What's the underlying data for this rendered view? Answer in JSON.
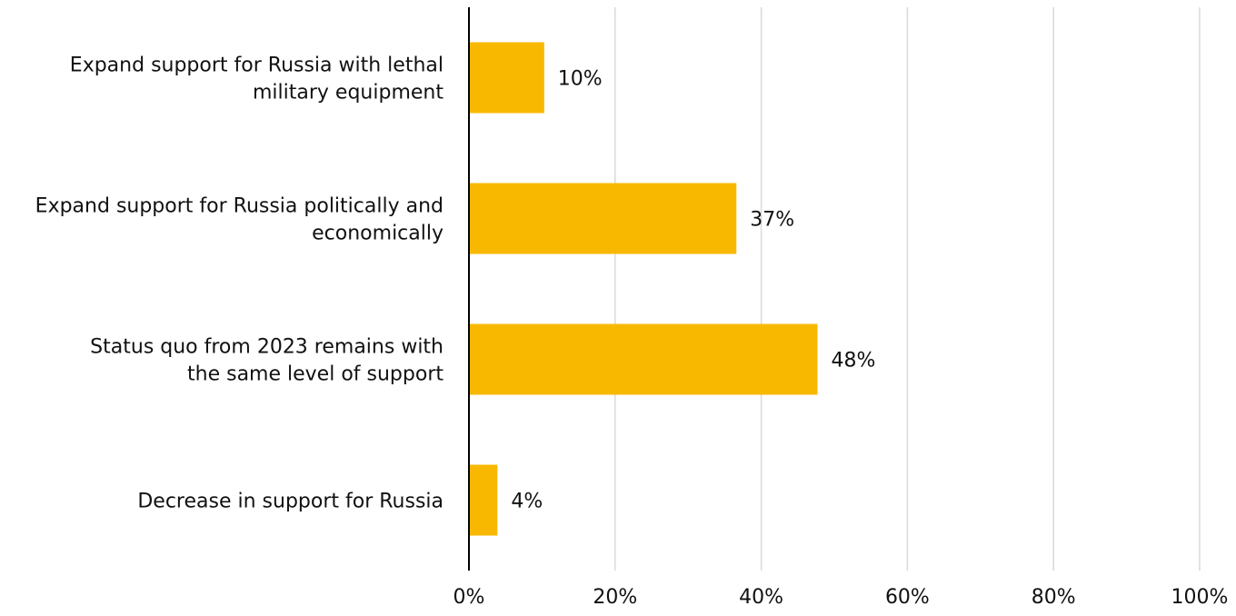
{
  "chart_data": {
    "type": "bar",
    "orientation": "horizontal",
    "categories": [
      [
        "Expand support for Russia with lethal",
        "military equipment"
      ],
      [
        "Expand support for Russia politically and",
        "economically"
      ],
      [
        "Status quo from 2023 remains with",
        "the same level of support"
      ],
      [
        "Decrease in support for Russia"
      ]
    ],
    "values": [
      10.3,
      36.6,
      47.7,
      3.9
    ],
    "data_labels": [
      "10%",
      "37%",
      "48%",
      "4%"
    ],
    "xlim": [
      0,
      100
    ],
    "x_ticks": [
      0,
      20,
      40,
      60,
      80,
      100
    ],
    "x_tick_labels": [
      "0%",
      "20%",
      "40%",
      "60%",
      "80%",
      "100%"
    ],
    "grid": "vertical",
    "legend": "none",
    "title": "",
    "xlabel": "",
    "ylabel": "",
    "colors": {
      "bar": "#F9B800",
      "grid": "#D9D9D9",
      "axis": "#000000",
      "text": "#111111"
    }
  }
}
